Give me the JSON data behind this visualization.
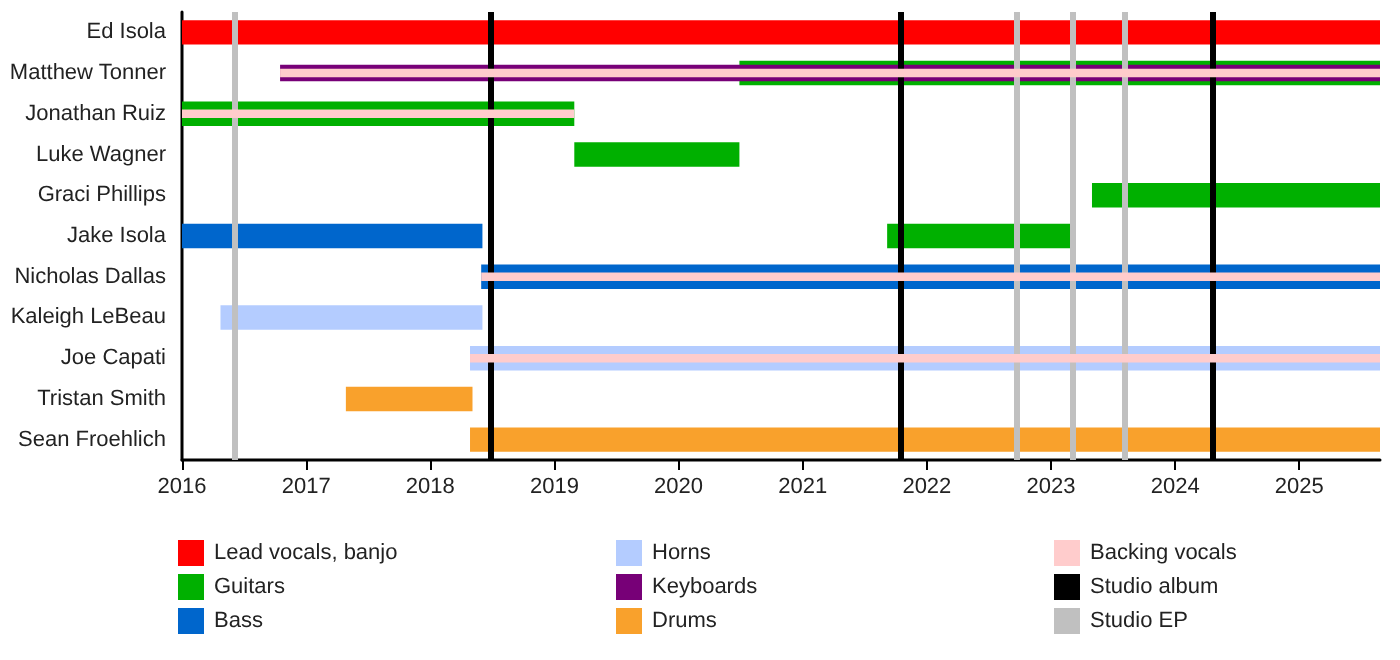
{
  "chart_data": {
    "type": "bar",
    "orientation": "horizontal",
    "categories": [
      "Ed Isola",
      "Matthew Tonner",
      "Jonathan Ruiz",
      "Luke Wagner",
      "Graci Phillips",
      "Jake Isola",
      "Nicholas Dallas",
      "Kaleigh LeBeau",
      "Joe Capati",
      "Tristan Smith",
      "Sean Froehlich"
    ],
    "series": [
      {
        "name": "Lead vocals, banjo",
        "color": "#ff0000",
        "base": [
          2016,
          null,
          null,
          null,
          null,
          null,
          null,
          null,
          null,
          null,
          null
        ],
        "values": [
          9.65,
          null,
          null,
          null,
          null,
          null,
          null,
          null,
          null,
          null,
          null
        ]
      },
      {
        "name": "Guitars",
        "color": "#00b000",
        "base": [
          null,
          2020.49,
          2016,
          2019.16,
          2023.33,
          2021.68,
          null,
          null,
          null,
          null,
          null
        ],
        "values": [
          null,
          5.16,
          3.16,
          1.33,
          2.32,
          1.48,
          null,
          null,
          null,
          null,
          null
        ]
      },
      {
        "name": "Bass",
        "color": "#0066cc",
        "base": [
          null,
          null,
          null,
          null,
          null,
          2016,
          2018.41,
          null,
          null,
          null,
          null
        ],
        "values": [
          null,
          null,
          null,
          null,
          null,
          2.42,
          7.24,
          null,
          null,
          null,
          null
        ]
      },
      {
        "name": "Horns",
        "color": "#b4ccff",
        "base": [
          null,
          null,
          null,
          null,
          null,
          null,
          null,
          2016.31,
          2018.32,
          null,
          null
        ],
        "values": [
          null,
          null,
          null,
          null,
          null,
          null,
          null,
          2.11,
          7.33,
          null,
          null
        ]
      },
      {
        "name": "Keyboards",
        "color": "#770077",
        "base": [
          null,
          2016.79,
          null,
          null,
          null,
          null,
          null,
          null,
          null,
          null,
          null
        ],
        "values": [
          null,
          8.86,
          null,
          null,
          null,
          null,
          null,
          null,
          null,
          null,
          null
        ]
      },
      {
        "name": "Drums",
        "color": "#f9a12c",
        "base": [
          null,
          null,
          null,
          null,
          null,
          null,
          null,
          null,
          null,
          2017.32,
          2018.32
        ],
        "values": [
          null,
          null,
          null,
          null,
          null,
          null,
          null,
          null,
          null,
          1.02,
          7.33
        ]
      },
      {
        "name": "Backing vocals",
        "color": "#ffcccc",
        "base": [
          null,
          2016.79,
          2016,
          null,
          null,
          null,
          2018.41,
          null,
          2018.32,
          null,
          null
        ],
        "values": [
          null,
          8.86,
          3.16,
          null,
          null,
          null,
          7.24,
          null,
          7.33,
          null,
          null
        ]
      }
    ],
    "ref_lines": [
      {
        "axis": "x",
        "value": 2018.48,
        "label": "Studio album",
        "color": "#000000"
      },
      {
        "axis": "x",
        "value": 2021.78,
        "color": "#000000"
      },
      {
        "axis": "x",
        "value": 2024.3,
        "color": "#000000"
      },
      {
        "axis": "x",
        "value": 2016.43,
        "label": "Studio EP",
        "color": "#c0c0c0"
      },
      {
        "axis": "x",
        "value": 2022.73,
        "color": "#c0c0c0"
      },
      {
        "axis": "x",
        "value": 2023.17,
        "color": "#c0c0c0"
      },
      {
        "axis": "x",
        "value": 2023.59,
        "color": "#c0c0c0"
      }
    ],
    "xlim": [
      2016,
      2025.65
    ],
    "xticks": [
      2016,
      2017,
      2018,
      2019,
      2020,
      2021,
      2022,
      2023,
      2024,
      2025
    ],
    "grid": false,
    "legend": "bottom"
  }
}
